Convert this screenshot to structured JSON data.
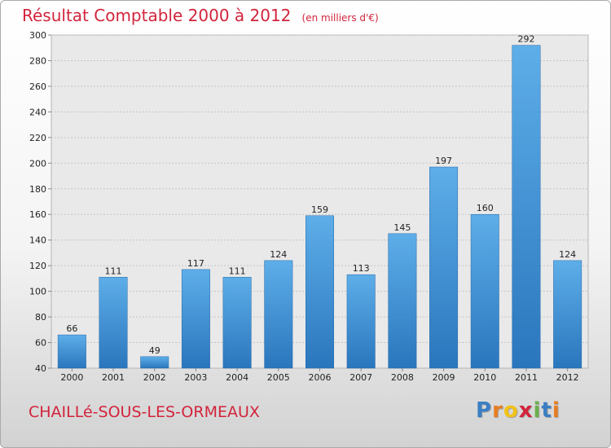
{
  "chart_data": {
    "type": "bar",
    "title": "Résultat Comptable 2000 à 2012",
    "subtitle": "(en milliers d'€)",
    "categories": [
      "2000",
      "2001",
      "2002",
      "2003",
      "2004",
      "2005",
      "2006",
      "2007",
      "2008",
      "2009",
      "2010",
      "2011",
      "2012"
    ],
    "values": [
      66,
      111,
      49,
      117,
      111,
      124,
      159,
      113,
      145,
      197,
      160,
      292,
      124
    ],
    "ylim": [
      40,
      300
    ],
    "yticks": [
      40,
      60,
      80,
      100,
      120,
      140,
      160,
      180,
      200,
      220,
      240,
      260,
      280,
      300
    ],
    "grid": true,
    "bar_color": "#3d8fd3",
    "title_color": "#d2243c"
  },
  "footer": {
    "commune": "CHAILLé-SOUS-LES-ORMEAUX"
  },
  "logo": {
    "text": "Proxiti",
    "colors": [
      "#3a7fc4",
      "#e67e22",
      "#f2c316",
      "#d2243c",
      "#6ab04c",
      "#3a7fc4",
      "#e67e22"
    ]
  }
}
